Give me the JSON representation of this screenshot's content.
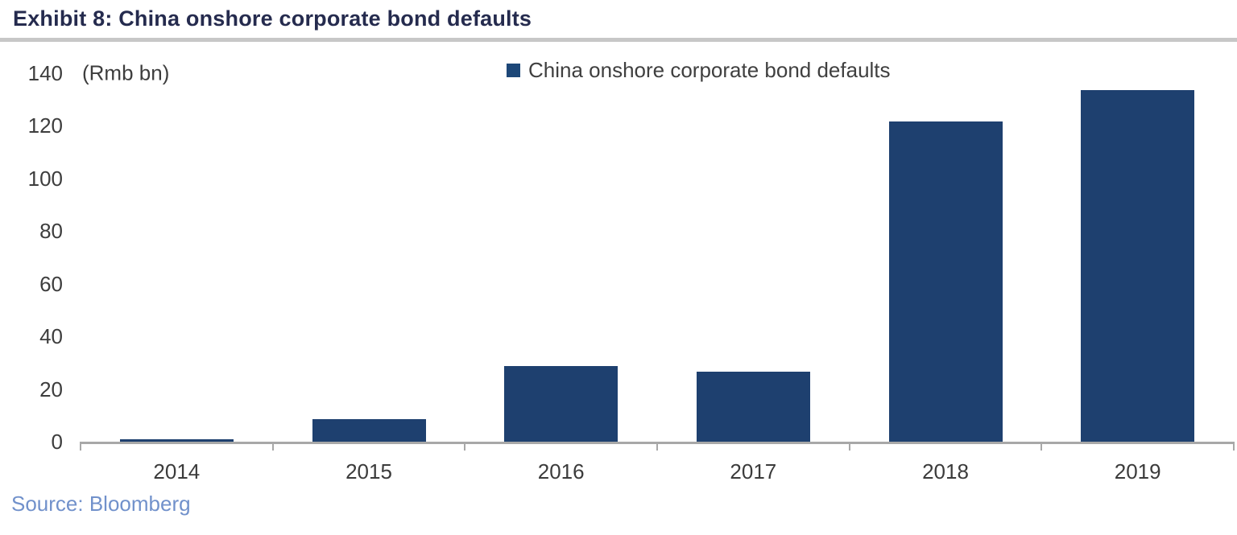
{
  "header": {
    "title": "Exhibit 8: China onshore corporate bond defaults"
  },
  "chart": {
    "unit_label": "(Rmb bn)",
    "legend_label": "China onshore corporate bond defaults"
  },
  "footer": {
    "source": "Source: Bloomberg"
  },
  "colors": {
    "bar": "#1e406f",
    "legend_marker": "#1d4778",
    "title": "#252b4e",
    "axis": "#a8a8a8",
    "rule": "#c7c7c7",
    "tick_text": "#3d3d3d",
    "source_text": "#7191cb"
  },
  "chart_data": {
    "type": "bar",
    "title": "Exhibit 8: China onshore corporate bond defaults",
    "categories": [
      "2014",
      "2015",
      "2016",
      "2017",
      "2018",
      "2019"
    ],
    "series": [
      {
        "name": "China onshore corporate bond defaults",
        "values": [
          1.3,
          9,
          29,
          27,
          122,
          134
        ]
      }
    ],
    "xlabel": "",
    "ylabel": "(Rmb bn)",
    "ylim": [
      0,
      140
    ],
    "yticks": [
      0,
      20,
      40,
      60,
      80,
      100,
      120,
      140
    ],
    "grid": false,
    "legend_position": "top-center",
    "source": "Source: Bloomberg"
  }
}
